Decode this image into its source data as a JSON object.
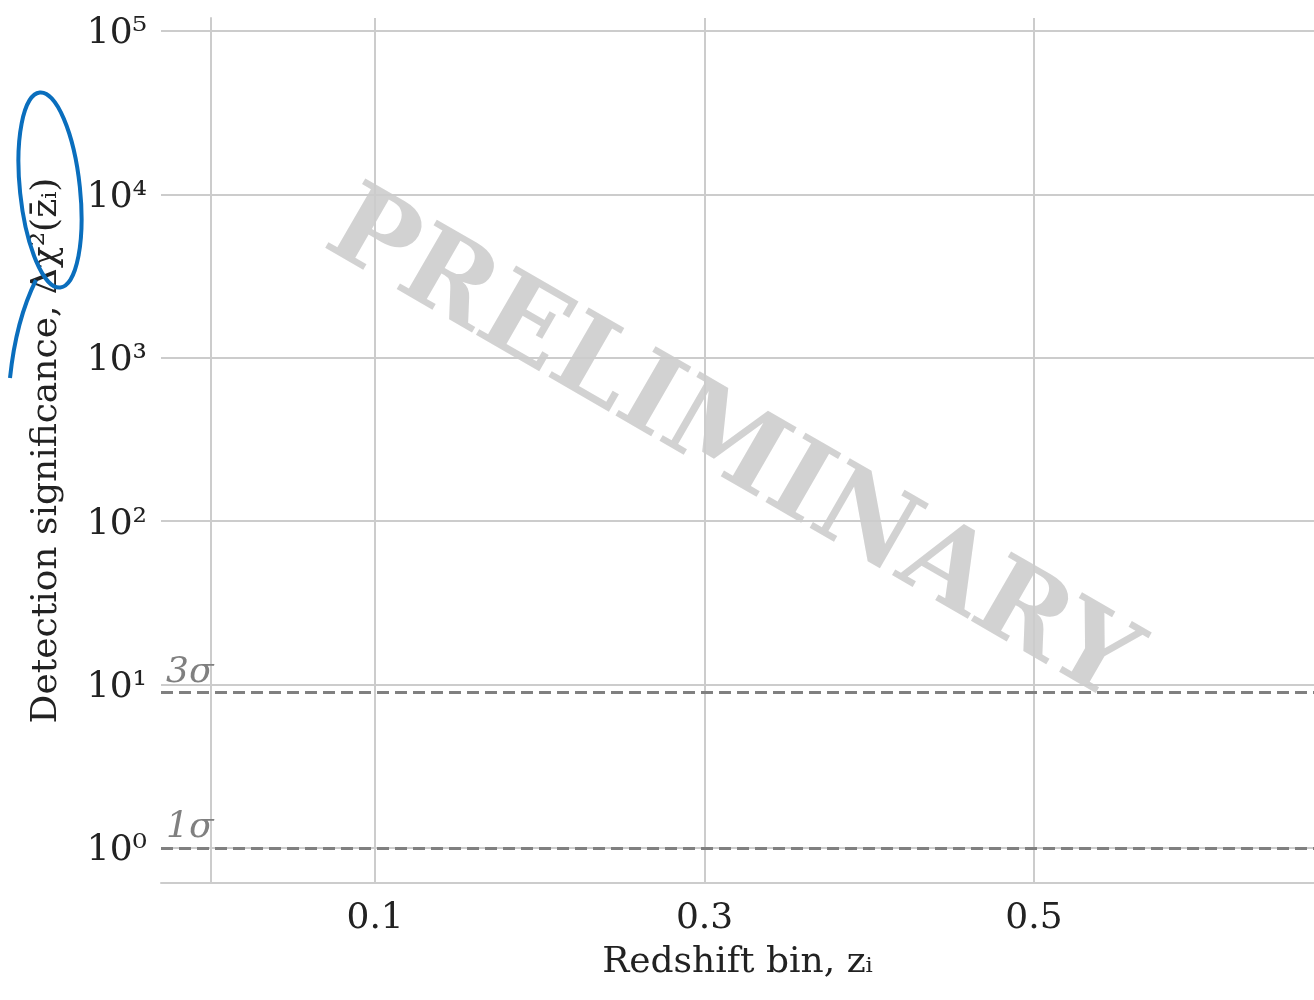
{
  "chart_data": {
    "type": "line",
    "xlabel": "Redshift bin, zᵢ",
    "ylabel": "Detection significance, Δχ²(z̄ᵢ)",
    "xlim": [
      -0.03,
      0.67
    ],
    "xticks": [
      0.1,
      0.3,
      0.5
    ],
    "ylim": [
      0.61,
      120000
    ],
    "yticks": [
      {
        "value": 1,
        "label": "10⁰"
      },
      {
        "value": 10,
        "label": "10¹"
      },
      {
        "value": 100,
        "label": "10²"
      },
      {
        "value": 1000,
        "label": "10³"
      },
      {
        "value": 10000,
        "label": "10⁴"
      },
      {
        "value": 100000,
        "label": "10⁵"
      }
    ],
    "log": "y",
    "grid": true,
    "ref_lines": [
      {
        "axis": "y",
        "value": 9,
        "label": "3σ",
        "color": "#808080",
        "line_style": "dashed"
      },
      {
        "axis": "y",
        "value": 1,
        "label": "1σ",
        "color": "#808080",
        "line_style": "dashed"
      }
    ],
    "annotations": [
      "PRELIMINARY"
    ]
  }
}
